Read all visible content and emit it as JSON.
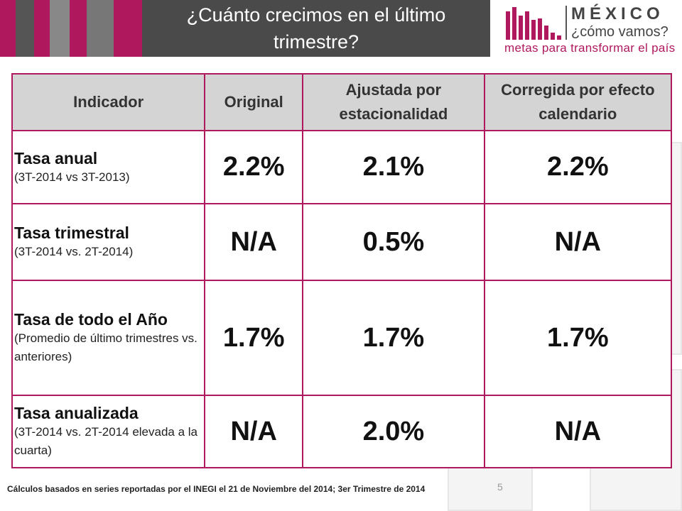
{
  "header": {
    "title": "¿Cuánto crecimos en el último trimestre?"
  },
  "logo": {
    "name": "MÉXICO",
    "subtitle": "¿cómo vamos?",
    "tagline": "metas para transformar el país",
    "accent_color": "#b0185e"
  },
  "colors": {
    "magenta": "#b0185e",
    "dark_grey": "#4a4a4a",
    "mid_grey": "#888888",
    "header_grey": "#d4d4d4"
  },
  "table": {
    "headers": [
      "Indicador",
      "Original",
      "Ajustada por estacionalidad",
      "Corregida por efecto calendario"
    ],
    "rows": [
      {
        "label": "Tasa anual",
        "sublabel": "(3T-2014 vs 3T-2013)",
        "original": "2.2%",
        "ajustada": "2.1%",
        "corregida": "2.2%"
      },
      {
        "label": "Tasa trimestral",
        "sublabel": "(3T-2014 vs. 2T-2014)",
        "original": "N/A",
        "ajustada": "0.5%",
        "corregida": "N/A"
      },
      {
        "label": "Tasa de todo el Año",
        "sublabel": "(Promedio de último trimestres vs. anteriores)",
        "original": "1.7%",
        "ajustada": "1.7%",
        "corregida": "1.7%"
      },
      {
        "label": "Tasa anualizada",
        "sublabel": "(3T-2014 vs. 2T-2014 elevada a la cuarta)",
        "original": "N/A",
        "ajustada": "2.0%",
        "corregida": "N/A"
      }
    ]
  },
  "footer": {
    "note": "Cálculos basados en series reportadas por el INEGI el 21 de Noviembre del 2014; 3er Trimestre de 2014",
    "page_number": "5"
  }
}
